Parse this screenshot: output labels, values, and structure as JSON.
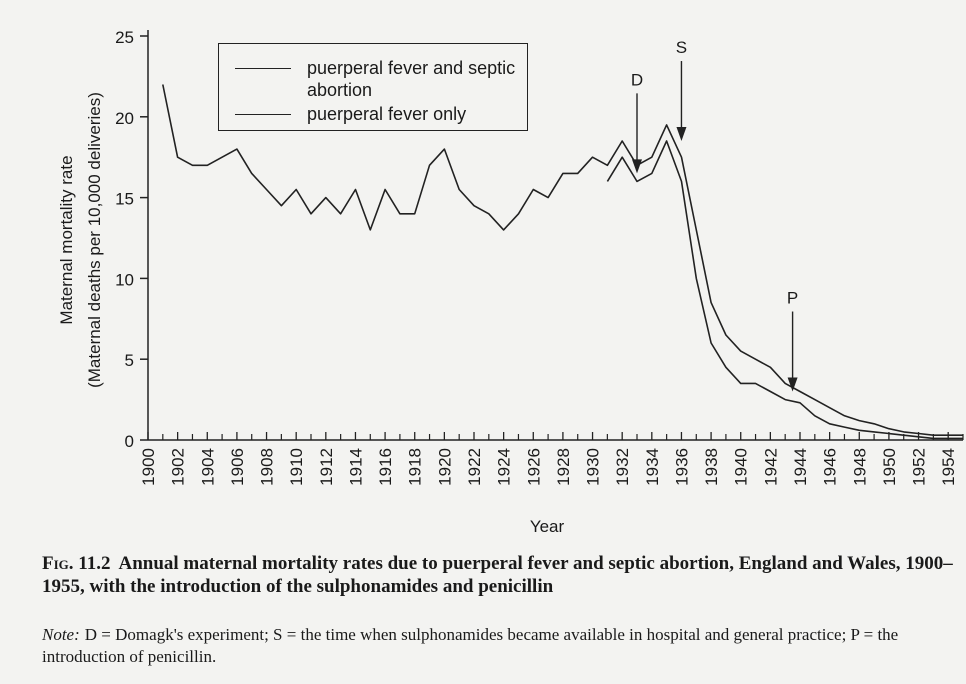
{
  "chart_data": {
    "type": "line",
    "y_label_lines": [
      "Maternal mortality rate",
      "(Maternal deaths per 10,000 deliveries)"
    ],
    "x_label": "Year",
    "x": [
      1900,
      1901,
      1902,
      1903,
      1904,
      1905,
      1906,
      1907,
      1908,
      1909,
      1910,
      1911,
      1912,
      1913,
      1914,
      1915,
      1916,
      1917,
      1918,
      1919,
      1920,
      1921,
      1922,
      1923,
      1924,
      1925,
      1926,
      1927,
      1928,
      1929,
      1930,
      1931,
      1932,
      1933,
      1934,
      1935,
      1936,
      1937,
      1938,
      1939,
      1940,
      1941,
      1942,
      1943,
      1944,
      1945,
      1946,
      1947,
      1948,
      1949,
      1950,
      1951,
      1952,
      1953,
      1954,
      1955
    ],
    "series": [
      {
        "name": "puerperal fever and septic abortion",
        "color": "#222222",
        "values": [
          null,
          22,
          17.5,
          17,
          17,
          17.5,
          18,
          16.5,
          15.5,
          14.5,
          15.5,
          14,
          15,
          14,
          15.5,
          13,
          15.5,
          14,
          14,
          17,
          18,
          15.5,
          14.5,
          14,
          13,
          14,
          15.5,
          15,
          16.5,
          16.5,
          17.5,
          17,
          18.5,
          17,
          17.5,
          19.5,
          17.5,
          13,
          8.5,
          6.5,
          5.5,
          5,
          4.5,
          3.5,
          3,
          2.5,
          2,
          1.5,
          1.2,
          1,
          0.7,
          0.5,
          0.4,
          0.3,
          0.3,
          0.3
        ]
      },
      {
        "name": "puerperal fever only",
        "color": "#222222",
        "values": [
          null,
          null,
          null,
          null,
          null,
          null,
          null,
          null,
          null,
          null,
          null,
          null,
          null,
          null,
          null,
          null,
          null,
          null,
          null,
          null,
          null,
          null,
          null,
          null,
          null,
          null,
          null,
          null,
          null,
          null,
          null,
          16,
          17.5,
          16,
          16.5,
          18.5,
          16,
          10,
          6,
          4.5,
          3.5,
          3.5,
          3,
          2.5,
          2.3,
          1.5,
          1,
          0.8,
          0.6,
          0.5,
          0.4,
          0.3,
          0.2,
          0.1,
          0.1,
          0.1
        ]
      }
    ],
    "xlim": [
      1900,
      1955
    ],
    "xticks": [
      1900,
      1902,
      1904,
      1906,
      1908,
      1910,
      1912,
      1914,
      1916,
      1918,
      1920,
      1922,
      1924,
      1926,
      1928,
      1930,
      1932,
      1934,
      1936,
      1938,
      1940,
      1942,
      1944,
      1946,
      1948,
      1950,
      1952,
      1954
    ],
    "xminorticks": [
      1901,
      1903,
      1905,
      1907,
      1909,
      1911,
      1913,
      1915,
      1917,
      1919,
      1921,
      1923,
      1925,
      1927,
      1929,
      1931,
      1933,
      1935,
      1937,
      1939,
      1941,
      1943,
      1945,
      1947,
      1949,
      1951,
      1953,
      1955
    ],
    "ylim": [
      0,
      25
    ],
    "yticks": [
      0,
      5,
      10,
      15,
      20,
      25
    ],
    "annotations": [
      {
        "label": "D",
        "x": 1933,
        "y": 16.5
      },
      {
        "label": "S",
        "x": 1936,
        "y": 18.5
      },
      {
        "label": "P",
        "x": 1943.5,
        "y": 3
      }
    ]
  },
  "caption": {
    "figure_label": "Fig. 11.2",
    "text": "Annual maternal mortality rates due to puerperal fever and septic abortion, England and Wales, 1900–1955, with the introduction of the sulphonamides and penicillin",
    "note_label": "Note:",
    "note": "D = Domagk's experiment; S = the time when sulphonamides became available in hospital and general practice; P = the introduction of penicillin."
  }
}
